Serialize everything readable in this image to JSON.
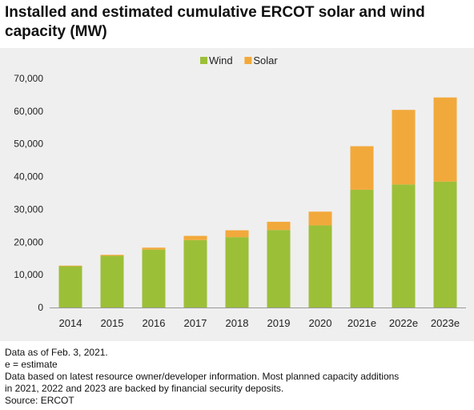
{
  "title": "Installed and estimated cumulative ERCOT solar and wind capacity (MW)",
  "notes": [
    "Data as of Feb. 3, 2021.",
    "e = estimate",
    "Data based on latest resource owner/developer information. Most planned capacity additions",
    "in 2021, 2022 and 2023 are backed by financial security deposits.",
    "Source: ERCOT"
  ],
  "colors": {
    "wind": "#9cbf38",
    "solar": "#f2a93b",
    "panel": "#efefef",
    "gridline": "#cccccc"
  },
  "chart_data": {
    "type": "bar",
    "stacked": true,
    "title": "Installed and estimated cumulative ERCOT solar and wind capacity (MW)",
    "xlabel": "",
    "ylabel": "",
    "categories": [
      "2014",
      "2015",
      "2016",
      "2017",
      "2018",
      "2019",
      "2020",
      "2021e",
      "2022e",
      "2023e"
    ],
    "series": [
      {
        "name": "Wind",
        "values": [
          12600,
          15800,
          17700,
          20600,
          21500,
          23700,
          25100,
          36000,
          37600,
          38500
        ]
      },
      {
        "name": "Solar",
        "values": [
          200,
          300,
          600,
          1300,
          2100,
          2500,
          4200,
          13300,
          22800,
          25700
        ]
      }
    ],
    "ylim": [
      0,
      70000
    ],
    "yticks": [
      0,
      10000,
      20000,
      30000,
      40000,
      50000,
      60000,
      70000
    ],
    "ytick_labels": [
      "0",
      "10,000",
      "20,000",
      "30,000",
      "40,000",
      "50,000",
      "60,000",
      "70,000"
    ],
    "legend_position": "top-center",
    "grid": false
  }
}
